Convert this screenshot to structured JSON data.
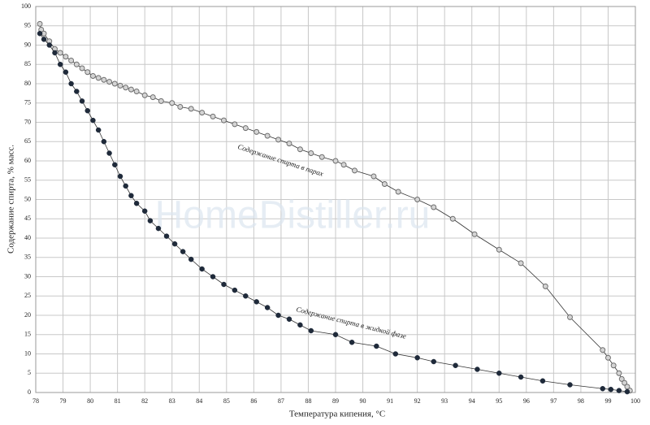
{
  "chart_data": {
    "type": "scatter",
    "watermark": "HomeDistiller.ru",
    "xlabel": "Температура кипения, °С",
    "ylabel": "Содержание спирта, % масс.",
    "xlim": [
      78,
      100
    ],
    "ylim": [
      0,
      100
    ],
    "xticks": [
      78,
      79,
      80,
      81,
      82,
      83,
      84,
      85,
      86,
      87,
      88,
      89,
      90,
      91,
      92,
      93,
      94,
      95,
      96,
      97,
      98,
      99,
      100
    ],
    "yticks": [
      0,
      5,
      10,
      15,
      20,
      25,
      30,
      35,
      40,
      45,
      50,
      55,
      60,
      65,
      70,
      75,
      80,
      85,
      90,
      95,
      100
    ],
    "grid": true,
    "series": [
      {
        "name": "Содержание спирта в парах",
        "color": "#6b6b6b",
        "marker": "open",
        "x": [
          78.15,
          78.2,
          78.3,
          78.5,
          78.7,
          78.9,
          79.1,
          79.3,
          79.5,
          79.7,
          79.9,
          80.1,
          80.3,
          80.5,
          80.7,
          80.9,
          81.1,
          81.3,
          81.5,
          81.7,
          82,
          82.3,
          82.6,
          83,
          83.3,
          83.7,
          84.1,
          84.5,
          84.9,
          85.3,
          85.7,
          86.1,
          86.5,
          86.9,
          87.3,
          87.7,
          88.1,
          88.5,
          89,
          89.3,
          89.7,
          90.4,
          90.8,
          91.3,
          92,
          92.6,
          93.3,
          94.1,
          95,
          95.8,
          96.7,
          97.6,
          98.8,
          99,
          99.2,
          99.4,
          99.5,
          99.6,
          99.7,
          99.8
        ],
        "values": [
          95.5,
          94,
          93,
          91,
          89,
          88,
          87,
          86,
          85,
          84,
          83,
          82,
          81.5,
          81,
          80.5,
          80,
          79.5,
          79,
          78.5,
          78,
          77,
          76.5,
          75.5,
          75,
          74,
          73.5,
          72.5,
          71.5,
          70.5,
          69.5,
          68.5,
          67.5,
          66.5,
          65.5,
          64.5,
          63,
          62,
          61,
          60,
          59,
          57.5,
          56,
          54,
          52,
          50,
          48,
          45,
          41,
          37,
          33.5,
          27.5,
          19.5,
          11,
          9,
          7,
          5,
          3.5,
          2.5,
          1.5,
          0.5
        ]
      },
      {
        "name": "Содержание спирта в жидкой фазе",
        "color": "#1f2a3a",
        "marker": "filled",
        "x": [
          78.15,
          78.3,
          78.5,
          78.7,
          78.9,
          79.1,
          79.3,
          79.5,
          79.7,
          79.9,
          80.1,
          80.3,
          80.5,
          80.7,
          80.9,
          81.1,
          81.3,
          81.5,
          81.7,
          82,
          82.2,
          82.5,
          82.8,
          83.1,
          83.4,
          83.7,
          84.1,
          84.5,
          84.9,
          85.3,
          85.7,
          86.1,
          86.5,
          86.9,
          87.3,
          87.7,
          88.1,
          89,
          89.6,
          90.5,
          91.2,
          92,
          92.6,
          93.4,
          94.2,
          95,
          95.8,
          96.6,
          97.6,
          98.8,
          99.1,
          99.4,
          99.7
        ],
        "values": [
          93,
          91.5,
          90,
          88,
          85,
          83,
          80,
          78,
          75.5,
          73,
          70.5,
          68,
          65,
          62,
          59,
          56,
          53.5,
          51,
          49,
          47,
          44.5,
          42.5,
          40.5,
          38.5,
          36.5,
          34.5,
          32,
          30,
          28,
          26.5,
          25,
          23.5,
          22,
          20,
          19,
          17.5,
          16,
          15,
          13,
          12,
          10,
          9,
          8,
          7,
          6,
          5,
          4,
          3,
          2,
          1,
          0.8,
          0.5,
          0.2
        ]
      }
    ]
  }
}
